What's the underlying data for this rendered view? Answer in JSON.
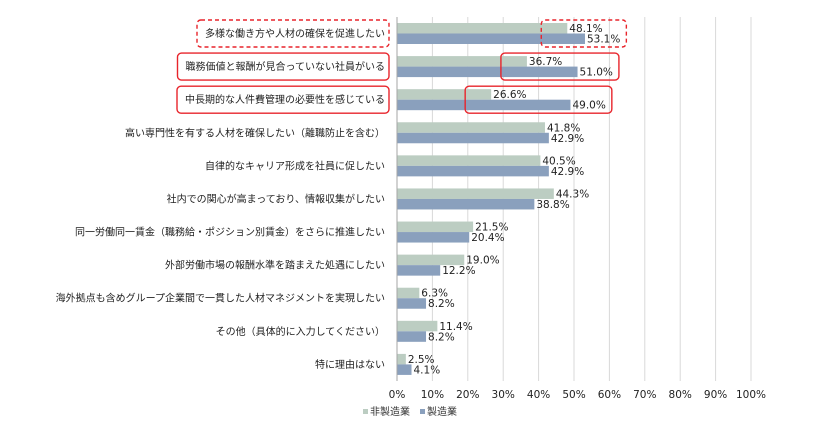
{
  "chart_data": {
    "type": "bar",
    "orientation": "horizontal",
    "categories": [
      "多様な働き方や人材の確保を促進したい",
      "職務価値と報酬が見合っていない社員がいる",
      "中長期的な人件費管理の必要性を感じている",
      "高い専門性を有する人材を確保したい（離職防止を含む）",
      "自律的なキャリア形成を社員に促したい",
      "社内での関心が高まっており、情報収集がしたい",
      "同一労働同一賃金（職務給・ポジション別賃金）をさらに推進したい",
      "外部労働市場の報酬水準を踏まえた処遇にしたい",
      "海外拠点も含めグループ企業間で一貫した人材マネジメントを実現したい",
      "その他（具体的に入力してください）",
      "特に理由はない"
    ],
    "series": [
      {
        "name": "非製造業",
        "color": "#bccdc2",
        "values": [
          48.1,
          36.7,
          26.6,
          41.8,
          40.5,
          44.3,
          21.5,
          19.0,
          6.3,
          11.4,
          2.5
        ],
        "labels": [
          "48.1%",
          "36.7%",
          "26.6%",
          "41.8%",
          "40.5%",
          "44.3%",
          "21.5%",
          "19.0%",
          "6.3%",
          "11.4%",
          "2.5%"
        ]
      },
      {
        "name": "製造業",
        "color": "#8aa0bd",
        "values": [
          53.1,
          51.0,
          49.0,
          42.9,
          42.9,
          38.8,
          20.4,
          12.2,
          8.2,
          8.2,
          4.1
        ],
        "labels": [
          "53.1%",
          "51.0%",
          "49.0%",
          "42.9%",
          "42.9%",
          "38.8%",
          "20.4%",
          "12.2%",
          "8.2%",
          "8.2%",
          "4.1%"
        ]
      }
    ],
    "xticks": [
      "0%",
      "10%",
      "20%",
      "30%",
      "40%",
      "50%",
      "60%",
      "70%",
      "80%",
      "90%",
      "100%"
    ],
    "xlim": [
      0,
      100
    ],
    "grid": "vertical",
    "legend": "bottom",
    "highlight_color": "#e8242b",
    "highlights": [
      {
        "category_index": 0,
        "style": "dashed"
      },
      {
        "category_index": 1,
        "style": "solid"
      },
      {
        "category_index": 2,
        "style": "solid"
      }
    ]
  }
}
